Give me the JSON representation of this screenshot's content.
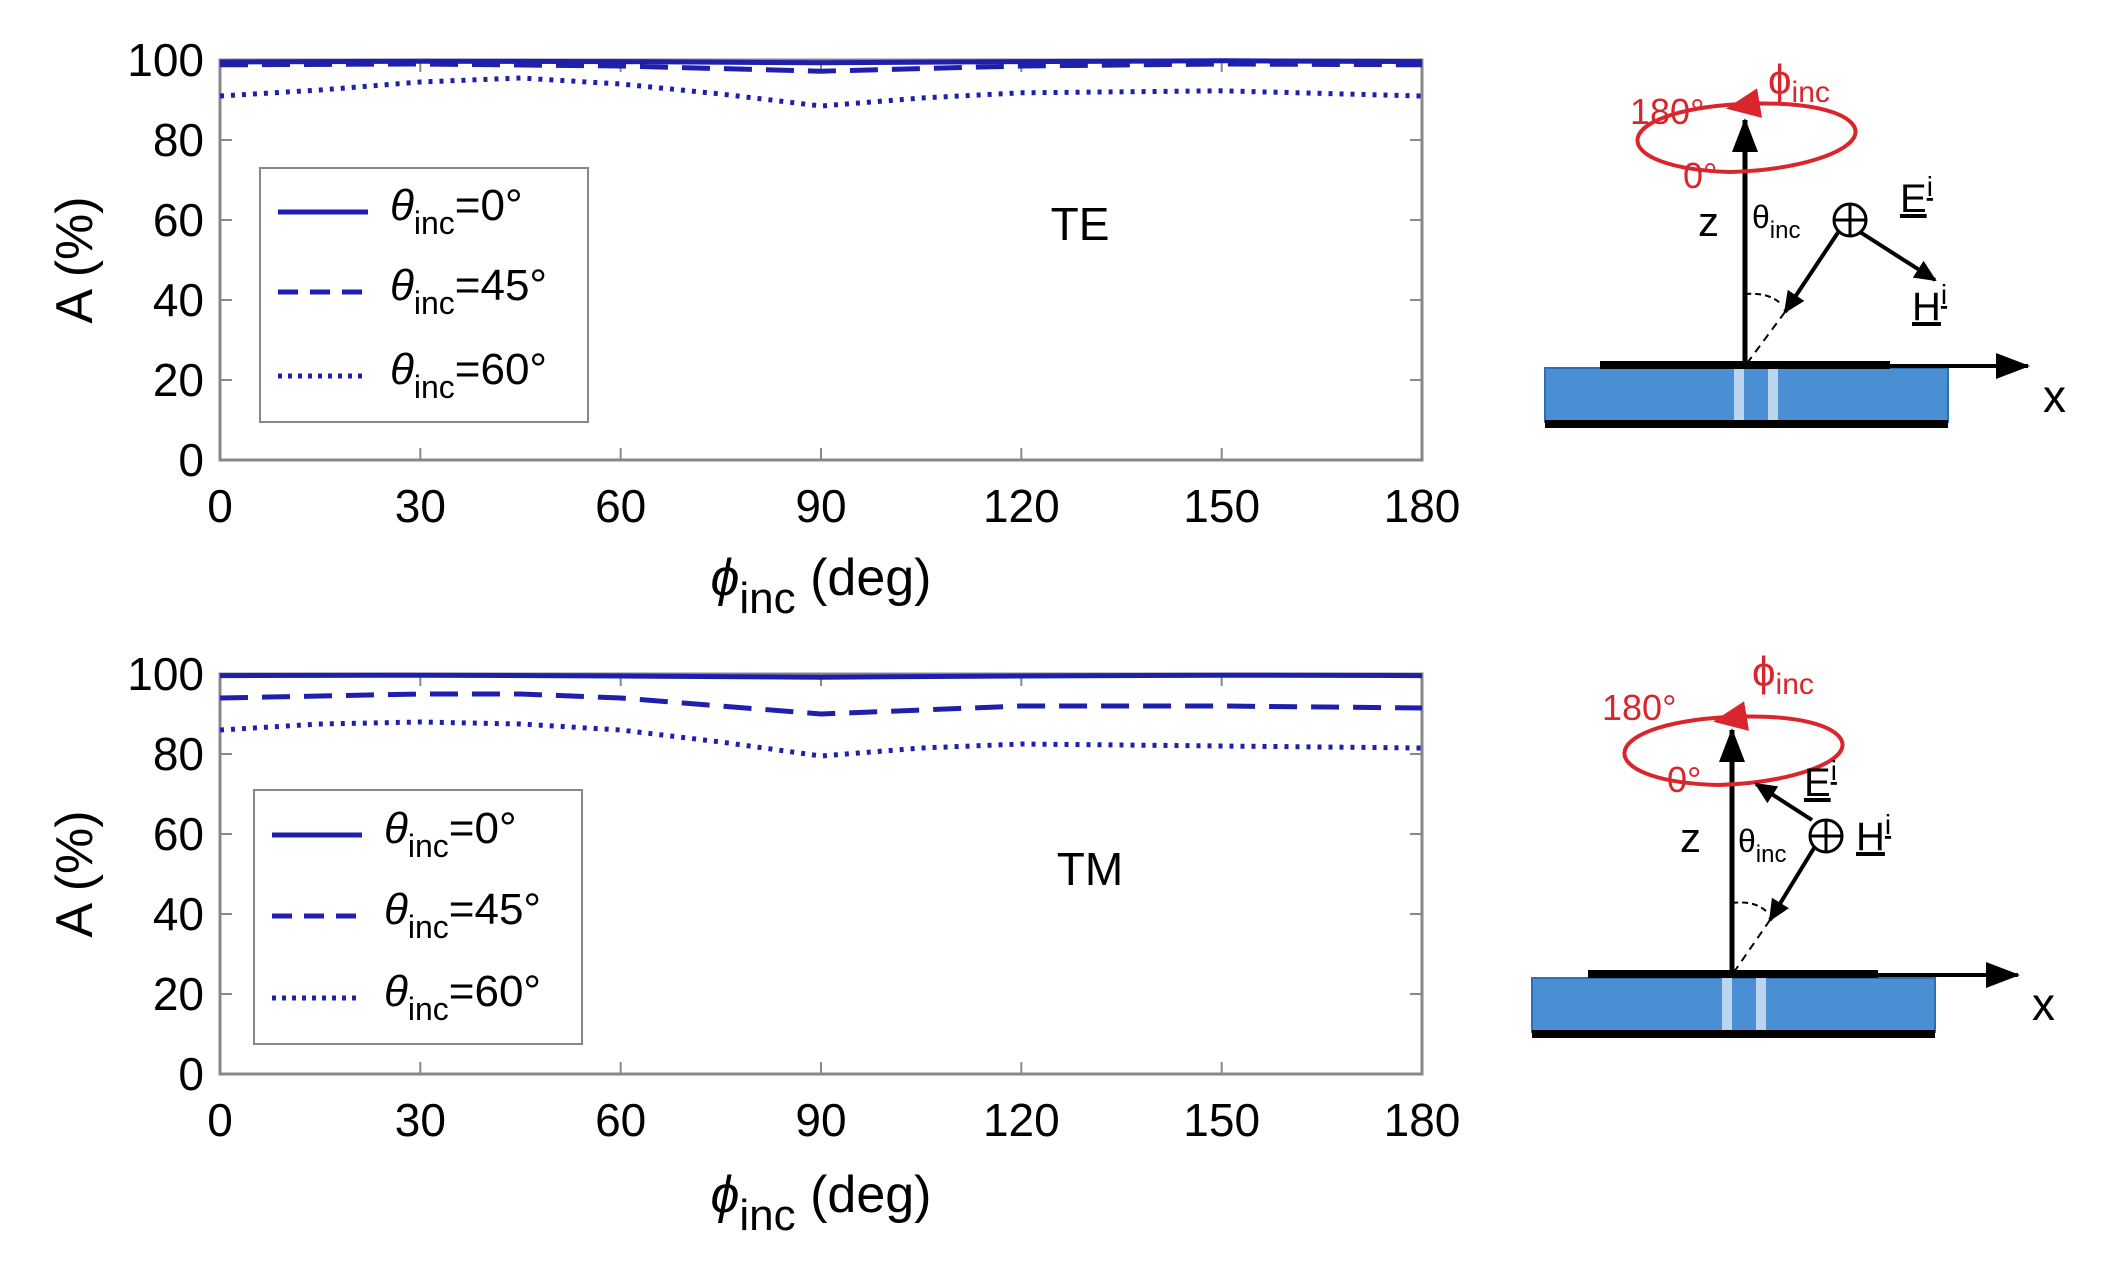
{
  "chart_data": [
    {
      "type": "line",
      "panel_label": "TE",
      "ylabel": "A (%)",
      "xlabel": {
        "symbol": "ϕ",
        "sub": "inc",
        "rest": " (deg)"
      },
      "xlim": [
        0,
        180
      ],
      "ylim": [
        0,
        100
      ],
      "xticks": [
        0,
        30,
        60,
        90,
        120,
        150,
        180
      ],
      "yticks": [
        0,
        20,
        40,
        60,
        80,
        100
      ],
      "grid": false,
      "legend": "left",
      "series": [
        {
          "name": "θinc=0°",
          "symbol": "θ",
          "sub": "inc",
          "rest": "=0°",
          "style": "solid",
          "x": [
            0,
            30,
            60,
            90,
            120,
            150,
            180
          ],
          "y": [
            99.5,
            99.7,
            99.6,
            99.3,
            99.6,
            99.8,
            99.6
          ]
        },
        {
          "name": "θinc=45°",
          "symbol": "θ",
          "sub": "inc",
          "rest": "=45°",
          "style": "dashed",
          "x": [
            0,
            30,
            60,
            90,
            120,
            150,
            180
          ],
          "y": [
            98.8,
            99.0,
            98.5,
            97.2,
            98.5,
            99.0,
            98.8
          ]
        },
        {
          "name": "θinc=60°",
          "symbol": "θ",
          "sub": "inc",
          "rest": "=60°",
          "style": "dotted",
          "x": [
            0,
            15,
            30,
            45,
            60,
            75,
            90,
            105,
            120,
            150,
            180
          ],
          "y": [
            91,
            92.5,
            94.5,
            95.5,
            94,
            91.5,
            88.5,
            90.5,
            91.8,
            92.3,
            91
          ]
        }
      ]
    },
    {
      "type": "line",
      "panel_label": "TM",
      "ylabel": "A (%)",
      "xlabel": {
        "symbol": "ϕ",
        "sub": "inc",
        "rest": " (deg)"
      },
      "xlim": [
        0,
        180
      ],
      "ylim": [
        0,
        100
      ],
      "xticks": [
        0,
        30,
        60,
        90,
        120,
        150,
        180
      ],
      "yticks": [
        0,
        20,
        40,
        60,
        80,
        100
      ],
      "grid": false,
      "legend": "left",
      "series": [
        {
          "name": "θinc=0°",
          "symbol": "θ",
          "sub": "inc",
          "rest": "=0°",
          "style": "solid",
          "x": [
            0,
            30,
            60,
            90,
            120,
            150,
            180
          ],
          "y": [
            99.6,
            99.7,
            99.5,
            99.2,
            99.5,
            99.7,
            99.6
          ]
        },
        {
          "name": "θinc=45°",
          "symbol": "θ",
          "sub": "inc",
          "rest": "=45°",
          "style": "dashed",
          "x": [
            0,
            15,
            30,
            45,
            60,
            75,
            90,
            105,
            120,
            150,
            180
          ],
          "y": [
            94,
            94.5,
            95,
            95,
            94,
            92,
            90,
            91,
            92,
            92,
            91.5
          ]
        },
        {
          "name": "θinc=60°",
          "symbol": "θ",
          "sub": "inc",
          "rest": "=60°",
          "style": "dotted",
          "x": [
            0,
            15,
            30,
            45,
            60,
            75,
            90,
            105,
            120,
            150,
            180
          ],
          "y": [
            86,
            87.5,
            88,
            87.5,
            86,
            83,
            79.5,
            81.5,
            82.5,
            82,
            81.5
          ]
        }
      ]
    }
  ],
  "colors": {
    "line": "#1f1fae",
    "red": "#d9262c",
    "substrate": "#4a8fd4",
    "substrate_edge": "#2f6fb0",
    "via": "#bcd5ef"
  },
  "diagrams": [
    {
      "angle_180": "180°",
      "angle_0": "0°",
      "phi_symbol": "ϕ",
      "phi_sub": "inc",
      "z": "z",
      "x": "x",
      "theta_symbol": "θ",
      "theta_sub": "inc",
      "field1": "E",
      "field1_sup": "i",
      "field2": "H",
      "field2_sup": "i"
    },
    {
      "angle_180": "180°",
      "angle_0": "0°",
      "phi_symbol": "ϕ",
      "phi_sub": "inc",
      "z": "z",
      "x": "x",
      "theta_symbol": "θ",
      "theta_sub": "inc",
      "field1": "E",
      "field1_sup": "i",
      "field2": "H",
      "field2_sup": "i"
    }
  ]
}
